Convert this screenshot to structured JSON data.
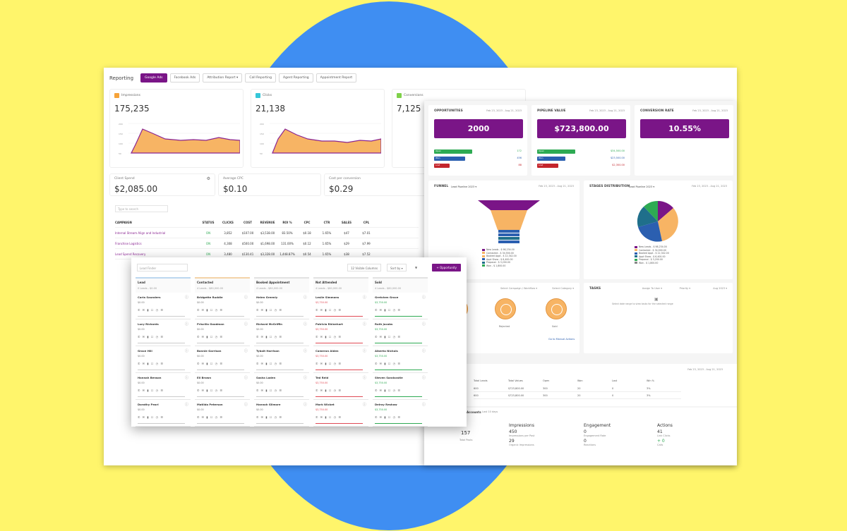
{
  "report": {
    "title": "Reporting",
    "tabs": [
      {
        "label": "Google Ads",
        "active": true
      },
      {
        "label": "Facebook Ads",
        "active": false
      },
      {
        "label": "Attribution Report ▾",
        "active": false
      },
      {
        "label": "Call Reporting",
        "active": false
      },
      {
        "label": "Agent Reporting",
        "active": false
      },
      {
        "label": "Appointment Report",
        "active": false
      }
    ],
    "stats": [
      {
        "label": "Impressions",
        "value": "175,235",
        "color": "#f6a33a"
      },
      {
        "label": "Clicks",
        "value": "21,138",
        "color": "#35c6d8"
      },
      {
        "label": "Conversions",
        "value": "7,125",
        "color": "#7fd14a"
      }
    ],
    "mini": [
      {
        "label": "Client Spend",
        "value": "$2,085.00"
      },
      {
        "label": "Average CPC",
        "value": "$0.10"
      },
      {
        "label": "Cost per conversion",
        "value": "$0.29"
      }
    ],
    "search_placeholder": "Type to search",
    "table": {
      "headers": [
        "CAMPAIGN",
        "STATUS",
        "CLICKS",
        "COST",
        "REVENUE",
        "ROI %",
        "CPC",
        "CTR",
        "SALES",
        "CPL"
      ],
      "rows": [
        [
          "Internal Stream Align and Industrial",
          "ON",
          "3,852",
          "$107.00",
          "$3,538.00",
          "83.50%",
          "$0.18",
          "1.65%",
          "$47",
          "$7.01"
        ],
        [
          "Franchise Logistics",
          "ON",
          "4,308",
          "$500.00",
          "$1,698.00",
          "131.00%",
          "$0.12",
          "1.65%",
          "$29",
          "$7.99"
        ],
        [
          "Lead Spend Recovery",
          "ON",
          "3,480",
          "$130.41",
          "$3,328.00",
          "1,448.87%",
          "$0.54",
          "1.65%",
          "$38",
          "$7.52"
        ]
      ]
    }
  },
  "dash": {
    "opp": {
      "title": "OPPORTUNITIES",
      "date": "Feb 23, 2023 - Aug 21, 2023",
      "value": "2000",
      "bars": [
        {
          "label": "Open",
          "val": "172",
          "color": "#2eaa53"
        },
        {
          "label": "Won",
          "val": "456",
          "color": "#2b5fb0"
        },
        {
          "label": "Lost",
          "val": "88",
          "color": "#c4252c"
        }
      ]
    },
    "pipe": {
      "title": "PIPELINE VALUE",
      "date": "Feb 23, 2023 - Aug 21, 2023",
      "value": "$723,800.00",
      "bars": [
        {
          "label": "Open",
          "val": "$34,500.00",
          "color": "#2eaa53"
        },
        {
          "label": "Won",
          "val": "$23,500.00",
          "color": "#2b5fb0"
        },
        {
          "label": "Lost",
          "val": "$2,300.00",
          "color": "#c4252c"
        }
      ]
    },
    "conv": {
      "title": "CONVERSION RATE",
      "date": "Feb 23, 2023 - Aug 21, 2023",
      "value": "10.55%"
    },
    "funnel": {
      "title": "FUNNEL",
      "sub": "Lead Pipeline 2023 ▾",
      "date": "Feb 23, 2023 - Aug 21, 2023",
      "legend": [
        "New Leads - $ 98,234.00",
        "Contacted - $ 34,900.00",
        "Booked Appt - $ 12,342.00",
        "Appt Show - $ 6,400.00",
        "Proposal - $ 3,200.00",
        "Won - $ 1,800.00"
      ]
    },
    "stage": {
      "title": "STAGES DISTRIBUTION",
      "sub": "Lead Pipeline 2023 ▾",
      "date": "Feb 23, 2023 - Aug 21, 2023",
      "legend": [
        "New Leads - $ 98,234.00",
        "Contacted - $ 34,900.00",
        "Booked Appt - $ 12,342.00",
        "Appt Show - $ 6,400.00",
        "Proposal - $ 3,200.00",
        "Won - $ 1,800.00"
      ]
    },
    "mid": {
      "f1": "Select Campaign / Workflow ▾",
      "f2": "Select Category ▾",
      "l1": "Rejected",
      "l2": "Sold",
      "link": "Go to Manual Actions"
    },
    "tasks": {
      "title": "TASKS",
      "f1": "Assign To User ▾",
      "f2": "Priority ▾",
      "f3": "Aug 2023 ▾",
      "empty": "Select date range to view tasks for the selected range"
    },
    "table": {
      "date": "Feb 23, 2023 - Aug 21, 2023",
      "headers": [
        "Total Leads",
        "Total Values",
        "Open",
        "Won",
        "Lost",
        "Win %"
      ],
      "rows": [
        [
          "600",
          "$723,800.00",
          "300",
          "20",
          "0",
          "3%"
        ],
        [
          "600",
          "$723,800.00",
          "300",
          "20",
          "0",
          "3%"
        ]
      ]
    },
    "social": {
      "title": "Accounts",
      "sub": "Last 10 days",
      "total": "157",
      "total_label": "Total Posts",
      "cols": [
        {
          "h": "Impressions",
          "n": "450",
          "s": "Impressions per Post",
          "n2": "29",
          "s2": "Organic Impressions"
        },
        {
          "h": "Engagement",
          "n": "0",
          "s": "Engagement Rate",
          "n2": "0",
          "s2": "Reactions"
        },
        {
          "h": "Actions",
          "n": "41",
          "s": "Link Clicks",
          "n2": "+ 0",
          "s2": "Calls"
        }
      ]
    }
  },
  "board": {
    "search": "Lead Finder",
    "ctrl1": "12 Visible Columns",
    "ctrl2": "Sort by ▾",
    "new": "+ Opportunity",
    "columns": [
      {
        "name": "Lead",
        "sub": "0 Leads - $0.00",
        "color": "#bcd7ef",
        "cards": [
          {
            "n": "Carla Saunders",
            "a": "$0.00"
          },
          {
            "n": "Lucy Richards",
            "a": "$0.00"
          },
          {
            "n": "Grace Hill",
            "a": "$0.00"
          },
          {
            "n": "Hannah Benson",
            "a": "$0.00"
          },
          {
            "n": "Dorothy Pearl",
            "a": "$0.00"
          }
        ]
      },
      {
        "name": "Contacted",
        "sub": "4 Leads - $80,000.00",
        "color": "#f4d3a8",
        "cards": [
          {
            "n": "Bridgette Ruddle",
            "a": "$0.00"
          },
          {
            "n": "Priscilla Goodman",
            "a": "$0.00"
          },
          {
            "n": "Bonnie Garrison",
            "a": "$0.00"
          },
          {
            "n": "Eli Brown",
            "a": "$0.00"
          },
          {
            "n": "Matilda Peterson",
            "a": "$0.00"
          }
        ]
      },
      {
        "name": "Booked Appointment",
        "sub": "4 Leads - $80,000.00",
        "color": "#e2e2e2",
        "cards": [
          {
            "n": "Helen Greenly",
            "a": "$0.00"
          },
          {
            "n": "Richard McGriffin",
            "a": "$0.00"
          },
          {
            "n": "Tybalt Harrison",
            "a": "$0.00"
          },
          {
            "n": "Sasha Loden",
            "a": "$0.00"
          },
          {
            "n": "Hannah Gilmore",
            "a": "$0.00"
          }
        ]
      },
      {
        "name": "Not Attended",
        "sub": "4 Leads - $80,000.00",
        "color": "#e2e2e2",
        "cards": [
          {
            "n": "Leslie Simmons",
            "a": "$3,750.00",
            "c": "#e04a55"
          },
          {
            "n": "Patricia Rhinehart",
            "a": "$3,750.00",
            "c": "#e04a55"
          },
          {
            "n": "Cameron Alden",
            "a": "$3,750.00",
            "c": "#e04a55"
          },
          {
            "n": "Ted Reid",
            "a": "$3,750.00",
            "c": "#e04a55"
          },
          {
            "n": "Mark Wicket",
            "a": "$3,750.00",
            "c": "#e04a55"
          }
        ]
      },
      {
        "name": "Sold",
        "sub": "4 Leads - $80,000.00",
        "color": "#e2e2e2",
        "cards": [
          {
            "n": "Gretchen Grace",
            "a": "$3,750.00",
            "c": "#2eaa53"
          },
          {
            "n": "Ruth Jacobs",
            "a": "$3,750.00",
            "c": "#2eaa53"
          },
          {
            "n": "Alberto Nichols",
            "a": "$3,750.00",
            "c": "#2eaa53"
          },
          {
            "n": "Steven Sandcastle",
            "a": "$3,750.00",
            "c": "#2eaa53"
          },
          {
            "n": "Delray Reshaw",
            "a": "$3,750.00",
            "c": "#2eaa53"
          }
        ]
      }
    ]
  },
  "colors": {
    "purple": "#7a1587",
    "orange": "#f6a33a",
    "blue": "#3f8ef2",
    "yellow": "#fff56b"
  }
}
